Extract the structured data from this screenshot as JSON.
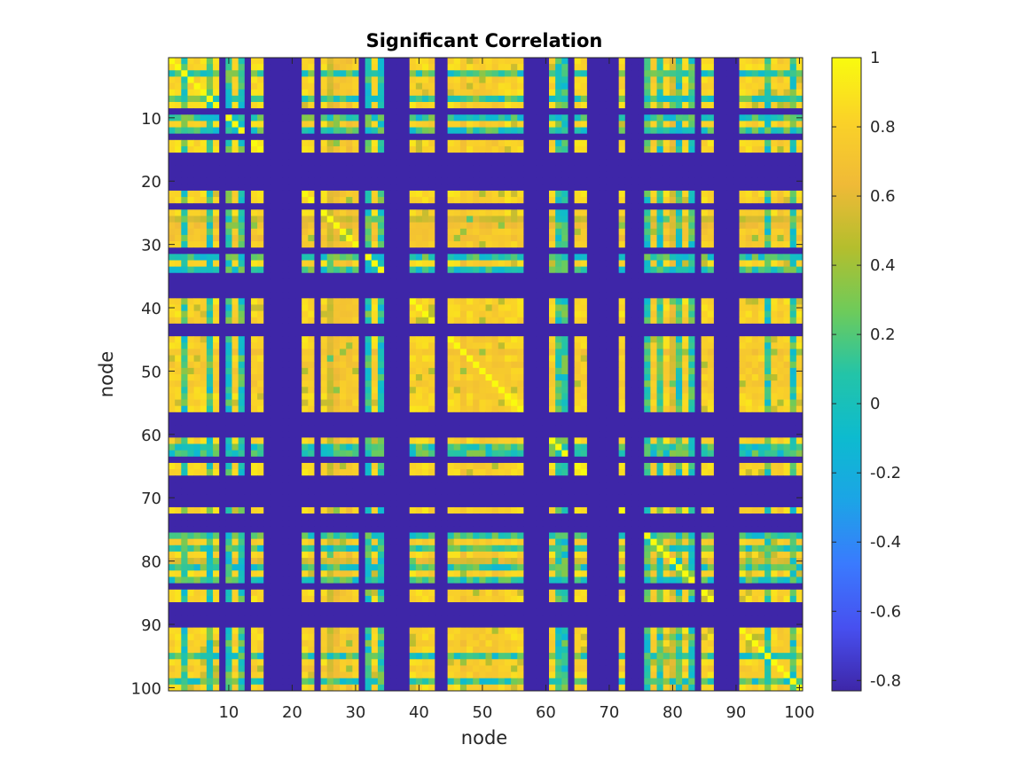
{
  "chart_data": {
    "type": "heatmap",
    "title": "Significant Correlation",
    "xlabel": "node",
    "ylabel": "node",
    "n": 100,
    "x_ticks": [
      10,
      20,
      30,
      40,
      50,
      60,
      70,
      80,
      90,
      100
    ],
    "y_ticks": [
      10,
      20,
      30,
      40,
      50,
      60,
      70,
      80,
      90,
      100
    ],
    "colorbar": {
      "range": [
        -0.83,
        1
      ],
      "ticks": [
        -0.8,
        -0.6,
        -0.4,
        -0.2,
        0,
        0.2,
        0.4,
        0.6,
        0.8,
        1
      ],
      "tick_labels": [
        "-0.8",
        "-0.6",
        "-0.4",
        "-0.2",
        "0",
        "0.2",
        "0.4",
        "0.6",
        "0.8",
        "1"
      ],
      "colormap": "parula"
    },
    "background_value": -0.83,
    "active_nodes": [
      1,
      2,
      3,
      4,
      5,
      6,
      7,
      8,
      10,
      11,
      12,
      14,
      15,
      22,
      23,
      25,
      26,
      27,
      28,
      29,
      30,
      32,
      33,
      34,
      39,
      40,
      41,
      42,
      45,
      46,
      47,
      48,
      49,
      50,
      51,
      52,
      53,
      54,
      55,
      56,
      61,
      62,
      63,
      65,
      66,
      72,
      76,
      77,
      78,
      79,
      80,
      81,
      82,
      83,
      85,
      86,
      91,
      92,
      93,
      94,
      95,
      96,
      97,
      98,
      99,
      100
    ],
    "values_note": "matrix values in [-0.2, 1] for active node pairs; -0.83 elsewhere"
  }
}
